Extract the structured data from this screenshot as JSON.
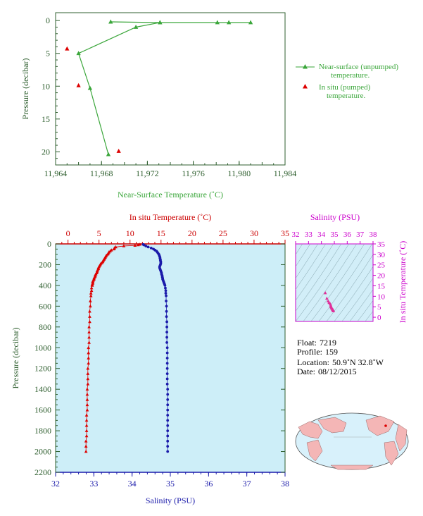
{
  "chart_data": [
    {
      "type": "line",
      "xlabel": "Near-Surface Temperature (˚C)",
      "ylabel": "Pressure (decibar)",
      "xlim": [
        11.964,
        11.984
      ],
      "ylim": [
        22,
        -1.2
      ],
      "xticks": [
        "11,964",
        "11,968",
        "11,972",
        "11,976",
        "11,980",
        "11,984"
      ],
      "yticks": [
        "0",
        "5",
        "10",
        "15",
        "20"
      ],
      "legend": {
        "placement": "right",
        "entries": [
          {
            "label_lines": [
              "Near-surface (unpumped)",
              "temperature."
            ],
            "color": "#3aa63a",
            "marker": "triangle-line"
          },
          {
            "label_lines": [
              "In situ (pumped)",
              "temperature."
            ],
            "color": "#dd0000",
            "marker": "triangle"
          }
        ]
      },
      "series": [
        {
          "name": "Near-surface (unpumped) temperature.",
          "color": "#3aa63a",
          "points": [
            [
              11.9686,
              20.4
            ],
            [
              11.967,
              10.3
            ],
            [
              11.966,
              5.0
            ],
            [
              11.971,
              1.0
            ],
            [
              11.9731,
              0.3
            ],
            [
              11.9688,
              0.2
            ],
            [
              11.9731,
              0.3
            ],
            [
              11.9781,
              0.3
            ],
            [
              11.9791,
              0.3
            ],
            [
              11.981,
              0.3
            ]
          ]
        },
        {
          "name": "In situ (pumped) temperature.",
          "color": "#dd0000",
          "points": [
            [
              11.965,
              4.3
            ],
            [
              11.966,
              9.9
            ],
            [
              11.9695,
              19.9
            ]
          ]
        }
      ]
    },
    {
      "type": "scatter",
      "top_label": "In situ Temperature (˚C)",
      "bottom_label": "Salinity (PSU)",
      "ylabel": "Pressure (decibar)",
      "temp_lim": [
        -2,
        35
      ],
      "sal_lim": [
        32,
        38
      ],
      "ylim": [
        2200,
        0
      ],
      "temp_ticks": [
        "0",
        "5",
        "10",
        "15",
        "20",
        "25",
        "30",
        "35"
      ],
      "sal_ticks": [
        "32",
        "33",
        "34",
        "35",
        "36",
        "37",
        "38"
      ],
      "yticks": [
        "0",
        "200",
        "400",
        "600",
        "800",
        "1000",
        "1200",
        "1400",
        "1600",
        "1800",
        "2000",
        "2200"
      ],
      "temperature": {
        "color": "#dd0000",
        "pressure": [
          5,
          10,
          15,
          20,
          30,
          40,
          50,
          60,
          70,
          80,
          90,
          100,
          110,
          120,
          130,
          140,
          150,
          160,
          170,
          180,
          190,
          200,
          210,
          220,
          230,
          240,
          250,
          260,
          270,
          280,
          290,
          300,
          310,
          320,
          330,
          340,
          350,
          360,
          370,
          380,
          390,
          400,
          425,
          450,
          475,
          500,
          550,
          600,
          650,
          700,
          750,
          800,
          850,
          900,
          950,
          1000,
          1050,
          1100,
          1150,
          1200,
          1250,
          1300,
          1350,
          1400,
          1450,
          1500,
          1550,
          1600,
          1650,
          1700,
          1750,
          1800,
          1850,
          1900,
          1950,
          2000
        ],
        "values": [
          11.6,
          11.3,
          10.8,
          9.0,
          7.7,
          7.5,
          7.4,
          7.0,
          6.8,
          6.6,
          6.5,
          6.4,
          6.2,
          6.1,
          6.0,
          5.9,
          5.8,
          5.7,
          5.6,
          5.5,
          5.3,
          5.2,
          5.1,
          5.0,
          4.9,
          4.9,
          4.8,
          4.7,
          4.7,
          4.6,
          4.5,
          4.4,
          4.4,
          4.3,
          4.2,
          4.2,
          4.1,
          4.0,
          4.0,
          4.0,
          3.9,
          3.9,
          3.8,
          3.8,
          3.7,
          3.7,
          3.6,
          3.6,
          3.5,
          3.5,
          3.5,
          3.4,
          3.4,
          3.4,
          3.4,
          3.3,
          3.3,
          3.3,
          3.3,
          3.2,
          3.2,
          3.2,
          3.2,
          3.1,
          3.1,
          3.1,
          3.1,
          3.1,
          3.0,
          3.0,
          3.0,
          3.0,
          3.0,
          2.9,
          2.9,
          2.9
        ]
      },
      "salinity": {
        "color": "#1a1aaa",
        "pressure": [
          5,
          10,
          20,
          30,
          40,
          50,
          60,
          70,
          80,
          90,
          100,
          110,
          120,
          130,
          140,
          150,
          160,
          170,
          180,
          190,
          200,
          210,
          220,
          230,
          240,
          250,
          260,
          270,
          280,
          290,
          300,
          310,
          320,
          330,
          340,
          350,
          360,
          370,
          380,
          390,
          400,
          425,
          450,
          475,
          500,
          550,
          600,
          650,
          700,
          750,
          800,
          850,
          900,
          950,
          1000,
          1050,
          1100,
          1150,
          1200,
          1250,
          1300,
          1350,
          1400,
          1450,
          1500,
          1550,
          1600,
          1650,
          1700,
          1750,
          1800,
          1850,
          1900,
          1950,
          2000
        ],
        "values": [
          34.29,
          34.31,
          34.36,
          34.42,
          34.5,
          34.56,
          34.6,
          34.64,
          34.66,
          34.68,
          34.7,
          34.71,
          34.72,
          34.73,
          34.73,
          34.74,
          34.74,
          34.75,
          34.75,
          34.75,
          34.74,
          34.73,
          34.72,
          34.72,
          34.73,
          34.74,
          34.75,
          34.76,
          34.77,
          34.77,
          34.78,
          34.79,
          34.79,
          34.8,
          34.8,
          34.81,
          34.82,
          34.83,
          34.84,
          34.85,
          34.86,
          34.87,
          34.88,
          34.88,
          34.89,
          34.89,
          34.9,
          34.9,
          34.9,
          34.91,
          34.91,
          34.91,
          34.91,
          34.91,
          34.92,
          34.92,
          34.92,
          34.92,
          34.92,
          34.92,
          34.92,
          34.92,
          34.93,
          34.93,
          34.93,
          34.93,
          34.93,
          34.93,
          34.93,
          34.93,
          34.93,
          34.93,
          34.93,
          34.93,
          34.93
        ]
      }
    },
    {
      "type": "scatter",
      "top_label": "Salinity (PSU)",
      "ylabel": "In situ Temperature (˚C)",
      "xlim": [
        32,
        38
      ],
      "ylim": [
        -2,
        35
      ],
      "xticks": [
        "32",
        "33",
        "34",
        "35",
        "36",
        "37",
        "38"
      ],
      "yticks": [
        "0",
        "5",
        "10",
        "15",
        "20",
        "25",
        "30",
        "35"
      ],
      "color": "#e0309a",
      "points": [
        [
          34.3,
          11.6
        ],
        [
          34.42,
          9.0
        ],
        [
          34.52,
          7.7
        ],
        [
          34.6,
          7.0
        ],
        [
          34.68,
          6.4
        ],
        [
          34.72,
          5.8
        ],
        [
          34.74,
          5.2
        ],
        [
          34.75,
          4.9
        ],
        [
          34.78,
          4.5
        ],
        [
          34.82,
          4.1
        ],
        [
          34.86,
          3.8
        ],
        [
          34.89,
          3.6
        ],
        [
          34.91,
          3.4
        ],
        [
          34.92,
          3.2
        ],
        [
          34.93,
          3.0
        ]
      ]
    }
  ],
  "info": {
    "float_label": "Float:",
    "float_value": "7219",
    "profile_label": "Profile:",
    "profile_value": "159",
    "location_label": "Location:",
    "location_value": "50.9˚N  32.8˚W",
    "date_label": "Date:",
    "date_value": "08/12/2015"
  },
  "colors": {
    "plot_bg": "#cdeef8",
    "green": "#3aa63a",
    "axis_green": "#2f5f2f",
    "red": "#dd0000",
    "blue": "#1a1aaa",
    "magenta": "#cc00cc",
    "land": "#f4b6b6",
    "ocean": "#d8f1fb"
  }
}
